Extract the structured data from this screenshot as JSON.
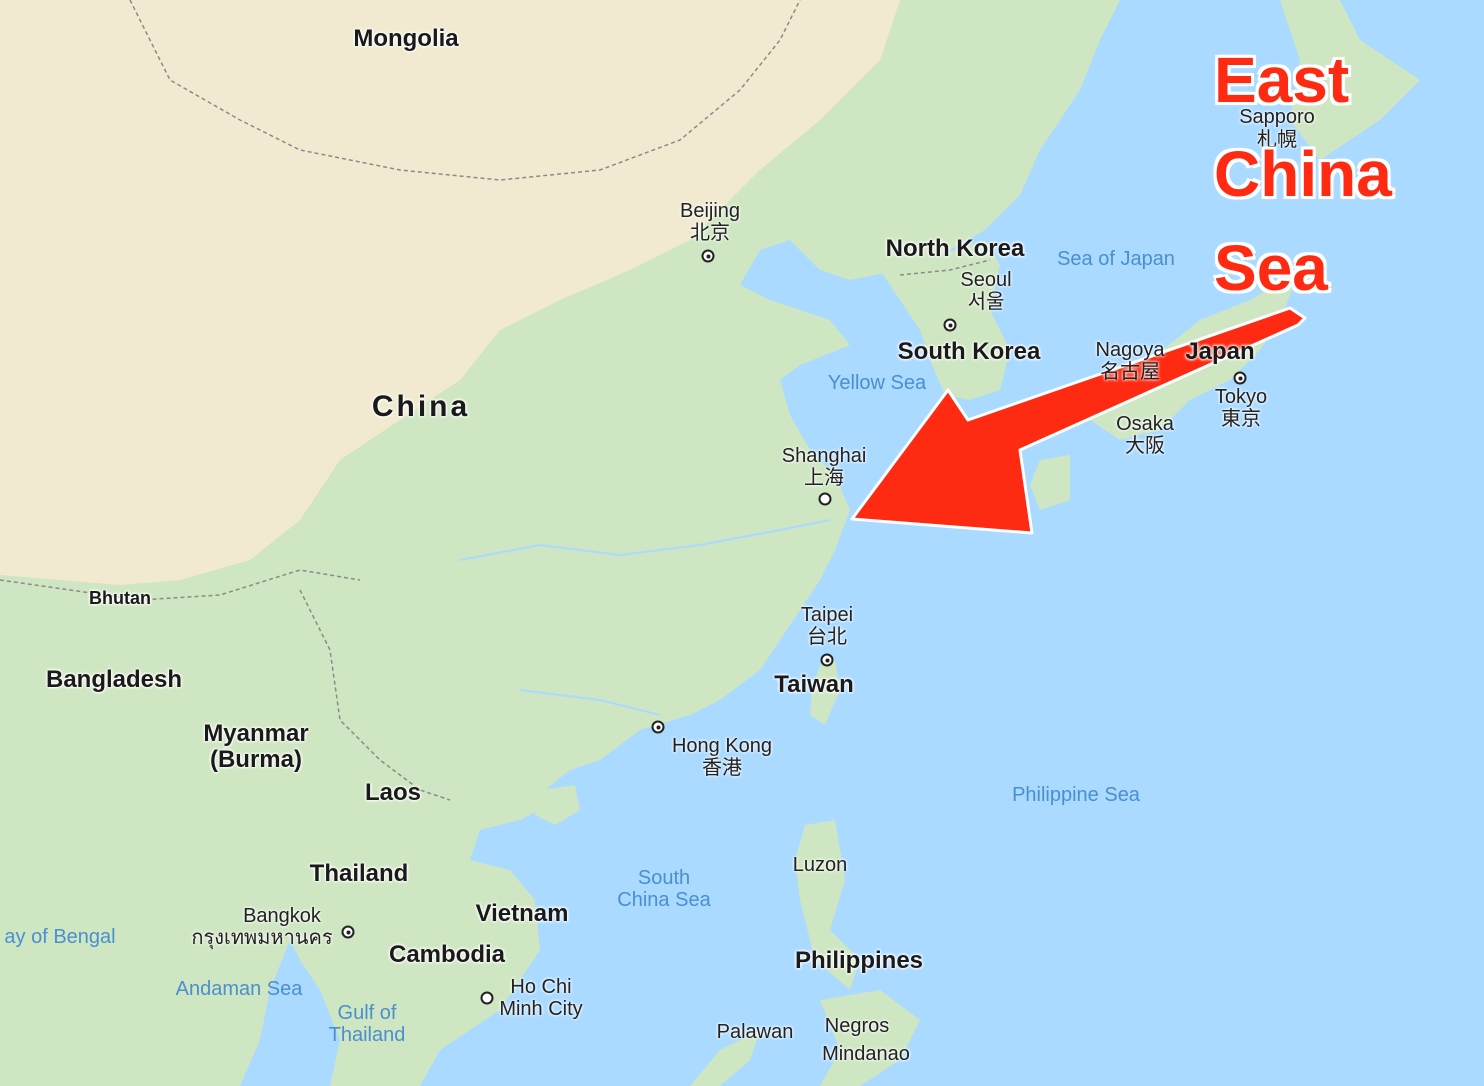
{
  "map": {
    "countries": {
      "mongolia": "Mongolia",
      "china": "China",
      "north_korea": "North Korea",
      "south_korea": "South Korea",
      "japan": "Japan",
      "taiwan": "Taiwan",
      "bhutan": "Bhutan",
      "bangladesh": "Bangladesh",
      "myanmar": "Myanmar\n(Burma)",
      "laos": "Laos",
      "thailand": "Thailand",
      "vietnam": "Vietnam",
      "cambodia": "Cambodia",
      "philippines": "Philippines"
    },
    "cities": {
      "beijing": "Beijing",
      "beijing_local": "北京",
      "seoul": "Seoul",
      "seoul_local": "서울",
      "shanghai": "Shanghai",
      "shanghai_local": "上海",
      "nagoya": "Nagoya",
      "nagoya_local": "名古屋",
      "osaka": "Osaka",
      "osaka_local": "大阪",
      "tokyo": "Tokyo",
      "tokyo_local": "東京",
      "sapporo": "Sapporo",
      "sapporo_local": "札幌",
      "taipei": "Taipei",
      "taipei_local": "台北",
      "hong_kong": "Hong Kong",
      "hong_kong_local": "香港",
      "bangkok": "Bangkok",
      "bangkok_local": "กรุงเทพมหานคร",
      "ho_chi_minh": "Ho Chi\nMinh City",
      "luzon": "Luzon",
      "palawan": "Palawan",
      "negros": "Negros",
      "mindanao": "Mindanao"
    },
    "water": {
      "sea_of_japan": "Sea of Japan",
      "yellow_sea": "Yellow Sea",
      "philippine_sea": "Philippine Sea",
      "south_china_sea": "South\nChina Sea",
      "bay_of_bengal": "ay of Bengal",
      "andaman_sea": "Andaman Sea",
      "gulf_of_thailand": "Gulf of\nThailand"
    },
    "colors": {
      "water": "#aadaff",
      "land_green": "#cfe6c2",
      "land_desert": "#f1ead0",
      "water_label": "#4a8fd0",
      "annotation": "#ff2a12"
    }
  },
  "annotation": {
    "line1": "East",
    "line2": "China",
    "line3": "Sea",
    "arrow_icon": "arrow-pointing-to-sea"
  }
}
